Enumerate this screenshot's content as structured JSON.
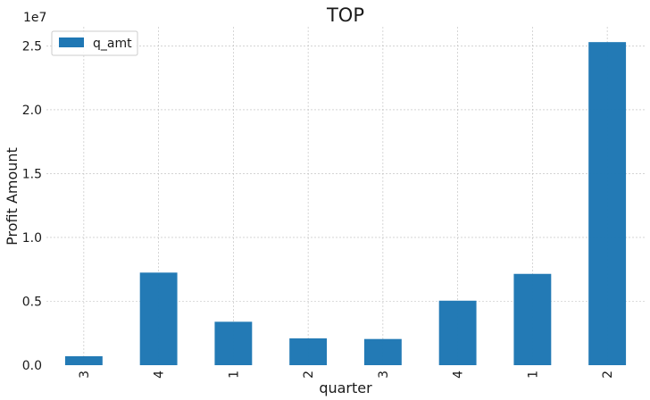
{
  "chart_data": {
    "type": "bar",
    "title": "TOP",
    "xlabel": "quarter",
    "ylabel": "Profit Amount",
    "y_offset_label": "1e7",
    "categories": [
      "3",
      "4",
      "1",
      "2",
      "3",
      "4",
      "1",
      "2"
    ],
    "series": [
      {
        "name": "q_amt",
        "color": "#1f77b4",
        "values": [
          700000,
          7250000,
          3400000,
          2100000,
          2050000,
          5050000,
          7150000,
          25300000
        ]
      }
    ],
    "y_ticks": [
      0,
      5000000,
      10000000,
      15000000,
      20000000,
      25000000
    ],
    "y_tick_labels": [
      "0.0",
      "0.5",
      "1.0",
      "1.5",
      "2.0",
      "2.5"
    ],
    "ylim": [
      0,
      26500000
    ],
    "grid": true,
    "legend_position": "top-left"
  }
}
